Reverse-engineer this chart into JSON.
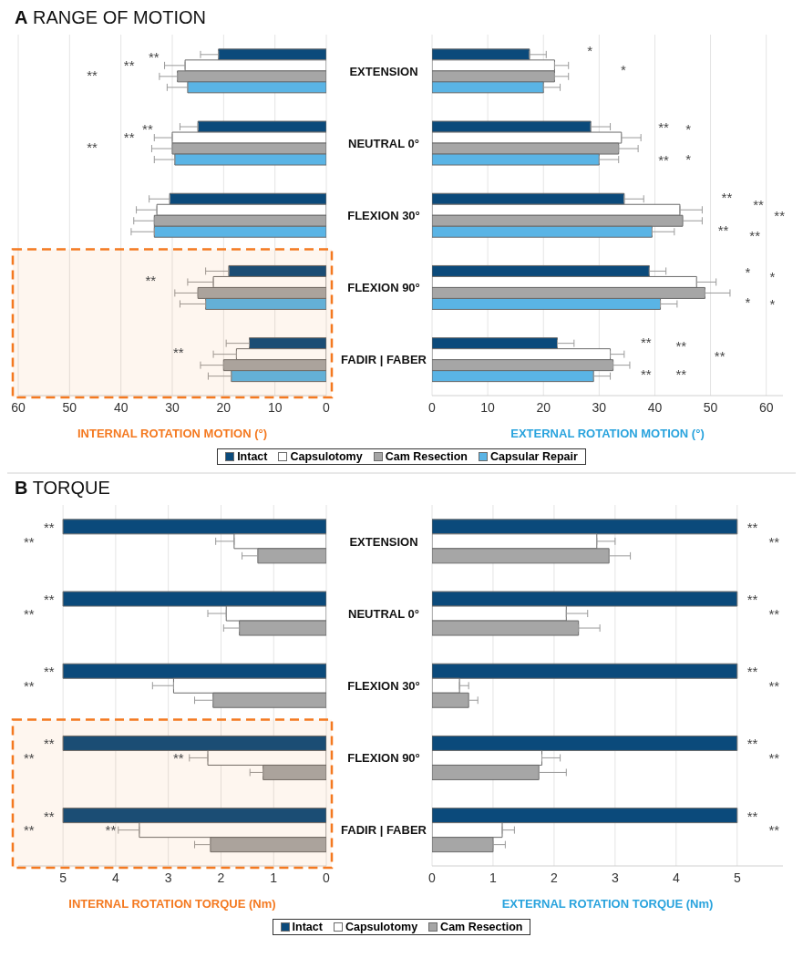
{
  "chart_data": [
    {
      "type": "bar",
      "orientation": "horizontal",
      "title": "A RANGE OF MOTION",
      "xlabel": "INTERNAL ROTATION MOTION (°)",
      "categories": [
        "EXTENSION",
        "NEUTRAL 0°",
        "FLEXION 30°",
        "FLEXION 90°",
        "FADIR | FABER"
      ],
      "xlim": [
        60,
        0
      ],
      "xticks": [
        60,
        50,
        40,
        30,
        20,
        10,
        0
      ],
      "grid": "x",
      "legend": "bottom",
      "series": [
        {
          "name": "Intact",
          "color": "#0b4a7b",
          "values": [
            21,
            25,
            30.5,
            19,
            15
          ],
          "errors": [
            [
              21,
              24.5
            ],
            [
              25,
              28.5
            ],
            [
              30.5,
              34.5
            ],
            [
              19,
              23.5
            ],
            [
              15,
              19.5
            ]
          ]
        },
        {
          "name": "Capsulotomy",
          "color": "#ffffff",
          "values": [
            27.5,
            30,
            33,
            22,
            17.5
          ],
          "errors": [
            [
              27.5,
              31.5
            ],
            [
              30,
              33.5
            ],
            [
              33,
              37
            ],
            [
              22,
              27
            ],
            [
              17.5,
              22
            ]
          ]
        },
        {
          "name": "Cam Resection",
          "color": "#a6a6a6",
          "values": [
            29,
            30,
            33.5,
            25,
            20
          ],
          "errors": [
            [
              29,
              32.5
            ],
            [
              30,
              34
            ],
            [
              33.5,
              37.5
            ],
            [
              25,
              29.5
            ],
            [
              20,
              24.5
            ]
          ]
        },
        {
          "name": "Capsular Repair",
          "color": "#5ab4e5",
          "values": [
            27,
            29.5,
            33.5,
            23.5,
            18.5
          ],
          "errors": [
            [
              27,
              31
            ],
            [
              29.5,
              33.5
            ],
            [
              33.5,
              38
            ],
            [
              23.5,
              28.5
            ],
            [
              18.5,
              23
            ]
          ]
        }
      ],
      "bands": [
        {
          "axis": "y",
          "from": "FLEXION 90°",
          "to": "FADIR | FABER",
          "color": "#f47920"
        }
      ],
      "annotations": [
        "**",
        "**",
        "**",
        "**",
        "**",
        "**",
        "**",
        "**"
      ]
    },
    {
      "type": "bar",
      "orientation": "horizontal",
      "xlabel": "EXTERNAL ROTATION MOTION (°)",
      "categories": [
        null,
        null,
        null,
        null,
        null
      ],
      "xlim": [
        0,
        63
      ],
      "xticks": [
        0,
        10,
        20,
        30,
        40,
        50,
        60
      ],
      "grid": "x",
      "tick_labels": "x",
      "series": [
        {
          "color": "#0b4a7b",
          "values": [
            17.5,
            28.5,
            34.5,
            39,
            22.5
          ],
          "errors": [
            [
              17.5,
              20.5
            ],
            [
              28.5,
              32
            ],
            [
              34.5,
              38
            ],
            [
              39,
              42
            ],
            [
              22.5,
              25.5
            ]
          ]
        },
        {
          "color": "#ffffff",
          "values": [
            22,
            34,
            44.5,
            47.5,
            32
          ],
          "errors": [
            [
              22,
              24.5
            ],
            [
              34,
              37.5
            ],
            [
              44.5,
              48.5
            ],
            [
              47.5,
              51
            ],
            [
              32,
              34.5
            ]
          ]
        },
        {
          "color": "#a6a6a6",
          "values": [
            22,
            33.5,
            45,
            49,
            32.5
          ],
          "errors": [
            [
              22,
              24.5
            ],
            [
              33.5,
              37
            ],
            [
              45,
              48.5
            ],
            [
              49,
              53.5
            ],
            [
              32.5,
              35.5
            ]
          ]
        },
        {
          "color": "#5ab4e5",
          "values": [
            20,
            30,
            39.5,
            41,
            29
          ],
          "errors": [
            [
              20,
              23
            ],
            [
              30,
              33.5
            ],
            [
              39.5,
              43.5
            ],
            [
              41,
              44
            ],
            [
              29,
              32
            ]
          ]
        }
      ],
      "annotations": [
        "*",
        "*",
        "**",
        "**",
        "*",
        "*",
        "**",
        "**",
        "**",
        "**",
        "**",
        "*",
        "*",
        "*",
        "*",
        "**",
        "**",
        "**",
        "**",
        "**"
      ]
    },
    {
      "type": "bar",
      "orientation": "horizontal",
      "title": "B TORQUE",
      "xlabel": "INTERNAL ROTATION TORQUE (Nm)",
      "categories": [
        "EXTENSION",
        "NEUTRAL 0°",
        "FLEXION 30°",
        "FLEXION 90°",
        "FADIR | FABER"
      ],
      "xlim": [
        5.85,
        0
      ],
      "xticks": [
        5,
        4,
        3,
        2,
        1,
        0
      ],
      "grid": "x",
      "legend": "bottom",
      "series": [
        {
          "name": "Intact",
          "color": "#0b4a7b",
          "values": [
            5,
            5,
            5,
            5,
            5
          ]
        },
        {
          "name": "Capsulotomy",
          "color": "#ffffff",
          "values": [
            1.75,
            1.9,
            2.9,
            2.25,
            3.55
          ],
          "errors": [
            [
              1.75,
              2.1
            ],
            [
              1.9,
              2.25
            ],
            [
              2.9,
              3.3
            ],
            [
              2.25,
              2.6
            ],
            [
              3.55,
              3.95
            ]
          ]
        },
        {
          "name": "Cam Resection",
          "color": "#a6a6a6",
          "values": [
            1.3,
            1.65,
            2.15,
            1.2,
            2.2
          ],
          "errors": [
            [
              1.3,
              1.6
            ],
            [
              1.65,
              1.95
            ],
            [
              2.15,
              2.5
            ],
            [
              1.2,
              1.45
            ],
            [
              2.2,
              2.5
            ]
          ]
        }
      ],
      "bands": [
        {
          "axis": "y",
          "from": "FLEXION 90°",
          "to": "FADIR | FABER",
          "color": "#f47920"
        }
      ],
      "annotations": [
        "**",
        "**",
        "**",
        "**",
        "**",
        "**",
        "**",
        "**",
        "**",
        "**",
        "**",
        "**"
      ]
    },
    {
      "type": "bar",
      "orientation": "horizontal",
      "xlabel": "EXTERNAL ROTATION TORQUE (Nm)",
      "categories": [
        null,
        null,
        null,
        null,
        null
      ],
      "xlim": [
        0,
        5.75
      ],
      "xticks": [
        0,
        1,
        2,
        3,
        4,
        5
      ],
      "grid": "x",
      "tick_labels": "x",
      "series": [
        {
          "color": "#0b4a7b",
          "values": [
            5,
            5,
            5,
            5,
            5
          ]
        },
        {
          "color": "#ffffff",
          "values": [
            2.7,
            2.2,
            0.45,
            1.8,
            1.15
          ],
          "errors": [
            [
              2.7,
              3.0
            ],
            [
              2.2,
              2.55
            ],
            [
              0.45,
              0.6
            ],
            [
              1.8,
              2.1
            ],
            [
              1.15,
              1.35
            ]
          ]
        },
        {
          "color": "#a6a6a6",
          "values": [
            2.9,
            2.4,
            0.6,
            1.75,
            1.0
          ],
          "errors": [
            [
              2.9,
              3.25
            ],
            [
              2.4,
              2.75
            ],
            [
              0.6,
              0.75
            ],
            [
              1.75,
              2.2
            ],
            [
              1.0,
              1.2
            ]
          ]
        }
      ],
      "annotations": [
        "**",
        "**",
        "**",
        "**",
        "**",
        "**",
        "**",
        "**",
        "**",
        "**"
      ]
    }
  ]
}
